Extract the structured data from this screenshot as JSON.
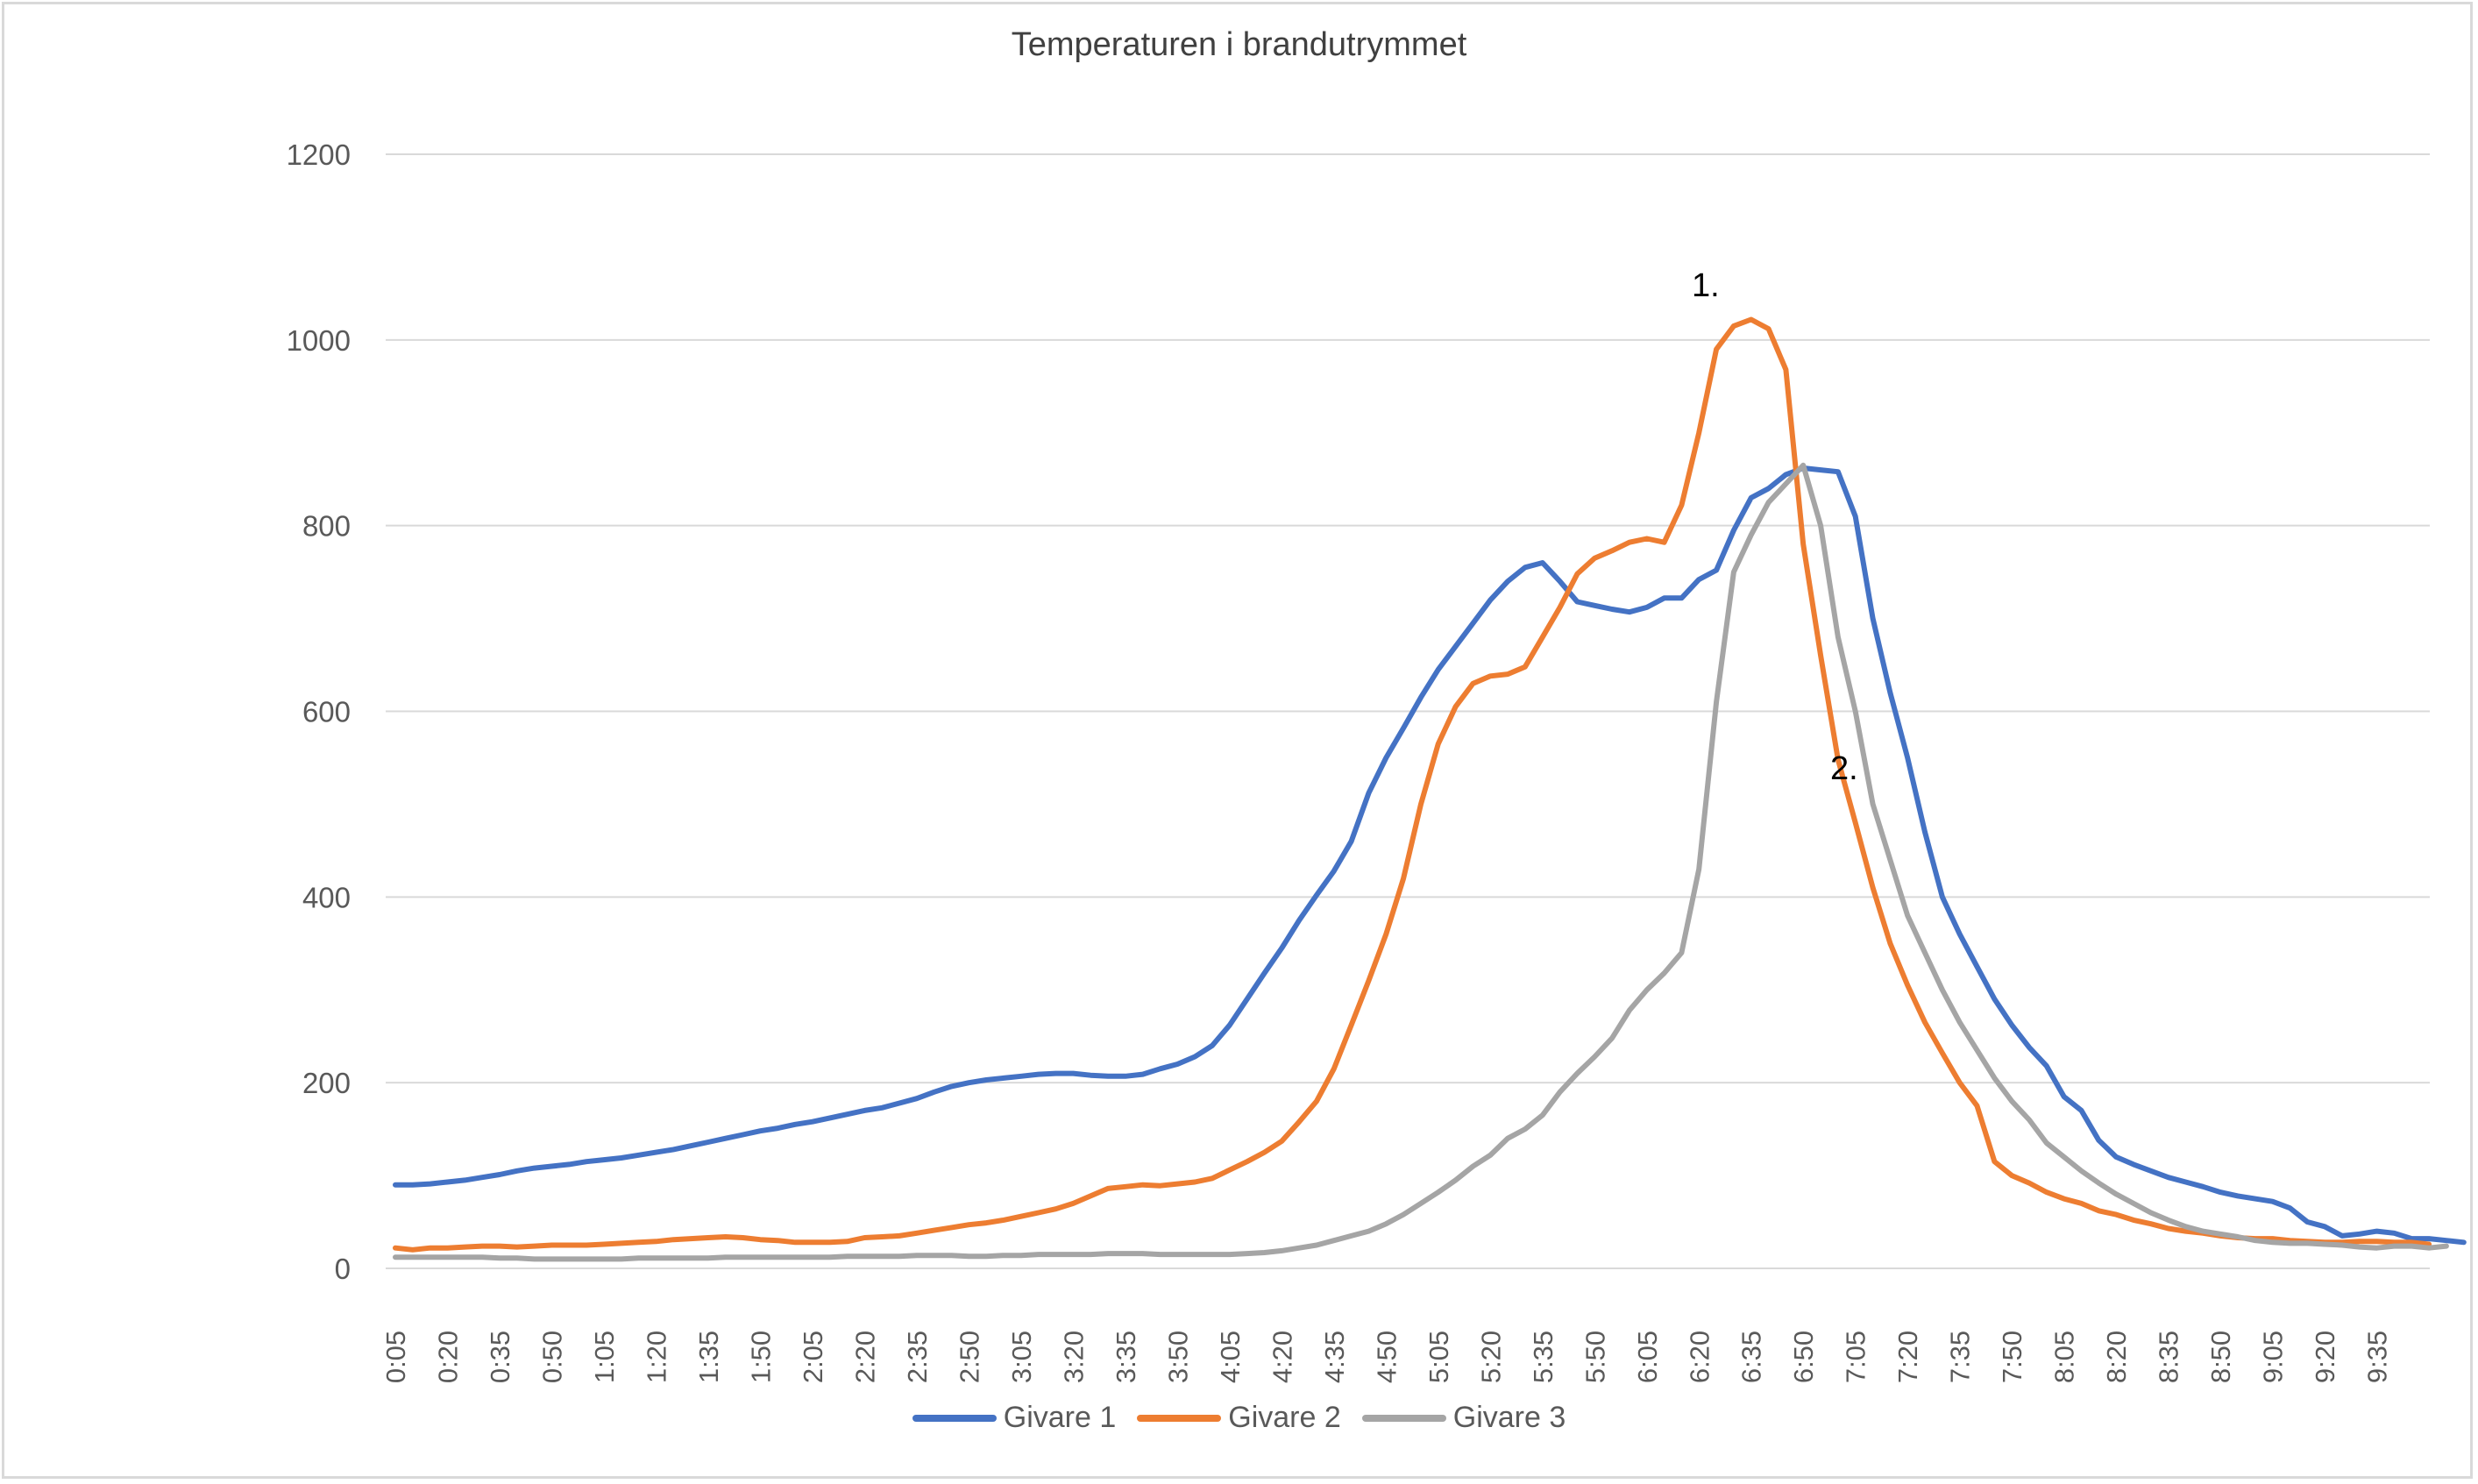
{
  "chart_data": {
    "type": "line",
    "title": "Temperaturen i brandutrymmet",
    "xlabel": "",
    "ylabel": "",
    "ylim": [
      0,
      1200
    ],
    "yticks": [
      0,
      200,
      400,
      600,
      800,
      1000,
      1200
    ],
    "grid": true,
    "legend_position": "bottom",
    "tick_labels": [
      "0:05",
      "0:20",
      "0:35",
      "0:50",
      "1:05",
      "1:20",
      "1:35",
      "1:50",
      "2:05",
      "2:20",
      "2:35",
      "2:50",
      "3:05",
      "3:20",
      "3:35",
      "3:50",
      "4:05",
      "4:20",
      "4:35",
      "4:50",
      "5:05",
      "5:20",
      "5:35",
      "5:50",
      "6:05",
      "6:20",
      "6:35",
      "6:50",
      "7:05",
      "7:20",
      "7:35",
      "7:50",
      "8:05",
      "8:20",
      "8:35",
      "8:50",
      "9:05",
      "9:20",
      "9:35"
    ],
    "x_step_seconds": 5,
    "x_start": "0:05",
    "x_end": "9:50",
    "annotations": [
      {
        "text": "1.",
        "near": "6:40",
        "value": 1050
      },
      {
        "text": "2.",
        "near": "6:55",
        "value": 530
      }
    ],
    "series": [
      {
        "name": "Givare 1",
        "color": "#4472C4",
        "values": [
          90,
          90,
          91,
          93,
          95,
          98,
          101,
          105,
          108,
          110,
          112,
          115,
          117,
          119,
          122,
          125,
          128,
          132,
          136,
          140,
          144,
          148,
          151,
          155,
          158,
          162,
          166,
          170,
          173,
          178,
          183,
          190,
          196,
          200,
          203,
          205,
          207,
          209,
          210,
          210,
          208,
          207,
          207,
          209,
          215,
          220,
          228,
          240,
          262,
          290,
          318,
          345,
          375,
          402,
          428,
          460,
          512,
          550,
          582,
          615,
          645,
          670,
          695,
          720,
          740,
          755,
          760,
          740,
          718,
          714,
          710,
          707,
          712,
          722,
          722,
          742,
          752,
          795,
          830,
          840,
          855,
          862,
          860,
          858,
          810,
          700,
          620,
          550,
          470,
          400,
          360,
          325,
          290,
          262,
          238,
          218,
          185,
          170,
          138,
          120,
          112,
          105,
          98,
          93,
          88,
          82,
          78,
          75,
          72,
          65,
          50,
          45,
          35,
          37,
          40,
          38,
          32,
          32,
          30,
          28
        ],
        "note": "values at 5-second steps from 0:05"
      },
      {
        "name": "Givare 2",
        "color": "#ED7D31",
        "values": [
          22,
          20,
          22,
          22,
          23,
          24,
          24,
          23,
          24,
          25,
          25,
          25,
          26,
          27,
          28,
          29,
          31,
          32,
          33,
          34,
          33,
          31,
          30,
          28,
          28,
          28,
          29,
          33,
          34,
          35,
          38,
          41,
          44,
          47,
          49,
          52,
          56,
          60,
          64,
          70,
          78,
          86,
          88,
          90,
          89,
          91,
          93,
          97,
          106,
          115,
          125,
          137,
          158,
          180,
          215,
          262,
          310,
          360,
          420,
          500,
          565,
          605,
          630,
          638,
          640,
          648,
          680,
          712,
          748,
          765,
          773,
          782,
          786,
          782,
          822,
          900,
          990,
          1015,
          1022,
          1012,
          968,
          780,
          660,
          548,
          480,
          410,
          350,
          305,
          265,
          232,
          200,
          175,
          115,
          100,
          92,
          82,
          75,
          70,
          62,
          58,
          52,
          48,
          43,
          40,
          38,
          35,
          33,
          32,
          32,
          30,
          29,
          28,
          28,
          29,
          29,
          28,
          28,
          26
        ],
        "note": "values at 5-second steps from 0:05"
      },
      {
        "name": "Givare 3",
        "color": "#A5A5A5",
        "values": [
          12,
          12,
          12,
          12,
          12,
          12,
          11,
          11,
          10,
          10,
          10,
          10,
          10,
          10,
          11,
          11,
          11,
          11,
          11,
          12,
          12,
          12,
          12,
          12,
          12,
          12,
          13,
          13,
          13,
          13,
          14,
          14,
          14,
          13,
          13,
          14,
          14,
          15,
          15,
          15,
          15,
          16,
          16,
          16,
          15,
          15,
          15,
          15,
          15,
          16,
          17,
          19,
          22,
          25,
          30,
          35,
          40,
          48,
          58,
          70,
          82,
          95,
          110,
          122,
          140,
          150,
          165,
          190,
          210,
          228,
          248,
          278,
          300,
          318,
          340,
          430,
          610,
          750,
          790,
          825,
          845,
          865,
          800,
          680,
          600,
          500,
          440,
          380,
          340,
          300,
          265,
          235,
          205,
          180,
          160,
          135,
          120,
          105,
          92,
          80,
          70,
          60,
          52,
          45,
          40,
          37,
          34,
          30,
          28,
          27,
          27,
          26,
          25,
          23,
          22,
          24,
          24,
          22,
          24
        ],
        "note": "values at 5-second steps from 0:05"
      }
    ]
  },
  "title": "Temperaturen i brandutrymmet",
  "y_axis": {
    "labels": [
      "1200",
      "1000",
      "800",
      "600",
      "400",
      "200",
      "0"
    ]
  },
  "annotations": {
    "a1": "1.",
    "a2": "2."
  },
  "legend": {
    "items": [
      {
        "label": "Givare 1",
        "color": "#4472C4"
      },
      {
        "label": "Givare 2",
        "color": "#ED7D31"
      },
      {
        "label": "Givare 3",
        "color": "#A5A5A5"
      }
    ]
  }
}
